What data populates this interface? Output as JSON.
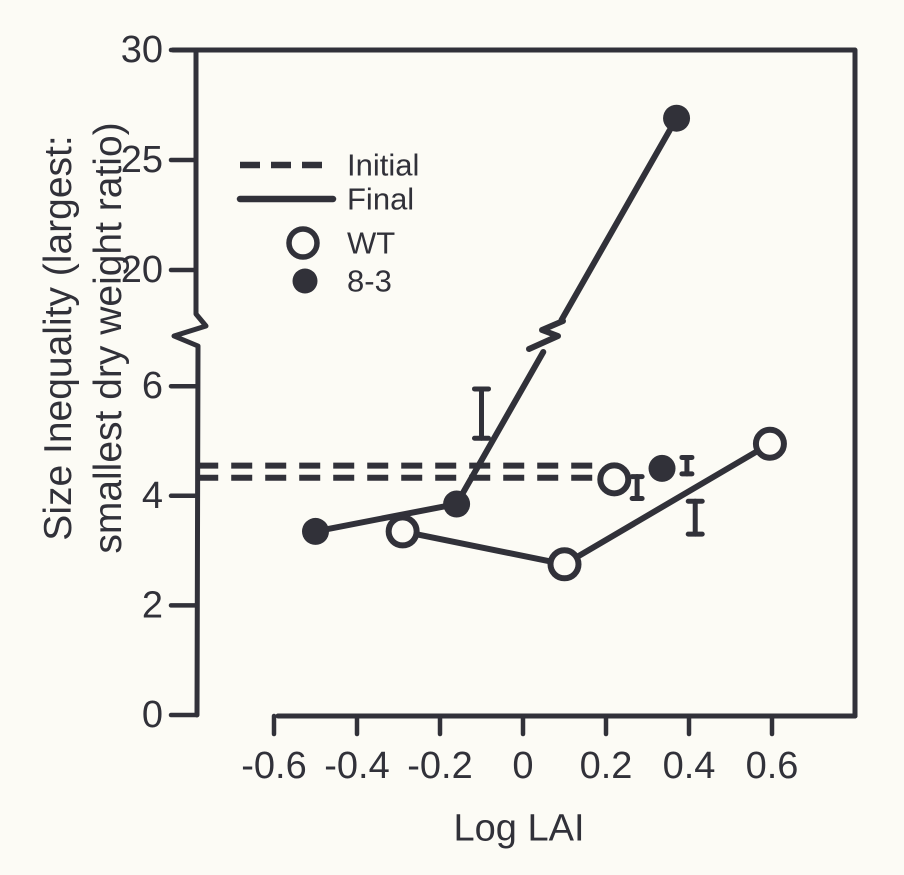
{
  "colors": {
    "ink": "#313139",
    "paper": "#fcfbf5"
  },
  "chart_data": {
    "type": "scatter",
    "title": "",
    "xlabel": "Log LAI",
    "ylabel_line1": "Size Inequality (largest:",
    "ylabel_line2": "smallest dry weight ratio)",
    "x_axis": {
      "tick_values": [
        -0.6,
        -0.4,
        -0.2,
        0,
        0.2,
        0.4,
        0.6
      ],
      "tick_labels": [
        "-0.6",
        "-0.4",
        "-0.2",
        "0",
        "0.2",
        "0.4",
        "0.6"
      ],
      "range": [
        -0.78,
        0.8
      ]
    },
    "y_axis": {
      "broken_axis": true,
      "lower_tick_values": [
        0,
        2,
        4,
        6
      ],
      "lower_tick_labels": [
        "0",
        "2",
        "4",
        "6"
      ],
      "upper_tick_values": [
        20,
        25,
        30
      ],
      "upper_tick_labels": [
        "20",
        "25",
        "30"
      ],
      "lower_range": [
        0,
        6.6
      ],
      "upper_range": [
        18,
        30
      ]
    },
    "legend": {
      "position": "upper-left-inside",
      "items": [
        {
          "sample": "dashed-line",
          "label": "Initial"
        },
        {
          "sample": "solid-line",
          "label": "Final"
        },
        {
          "sample": "open-circle",
          "label": "WT"
        },
        {
          "sample": "filled-circle",
          "label": "8-3"
        }
      ]
    },
    "initial_lines": [
      {
        "style": "dashed",
        "value": 4.55,
        "x_from": -0.785,
        "x_to": 0.197
      },
      {
        "style": "dashed",
        "value": 4.33,
        "x_from": -0.785,
        "x_to": 0.188
      }
    ],
    "series": [
      {
        "name": "WT final",
        "marker": "open-circle",
        "line": "solid",
        "points": [
          [
            -0.29,
            3.35
          ],
          [
            0.1,
            2.75
          ],
          [
            0.595,
            4.95
          ]
        ]
      },
      {
        "name": "WT final (unconnected point)",
        "marker": "open-circle",
        "line": "none",
        "points": [
          [
            0.22,
            4.3
          ]
        ]
      },
      {
        "name": "8-3 final",
        "marker": "filled-circle",
        "line": "solid-with-break",
        "points": [
          [
            -0.5,
            3.35
          ],
          [
            -0.16,
            3.85
          ],
          [
            0.37,
            26.9
          ]
        ]
      },
      {
        "name": "8-3 final (unconnected point)",
        "marker": "filled-circle",
        "line": "none",
        "points": [
          [
            0.335,
            4.5
          ]
        ]
      }
    ],
    "error_bars": [
      {
        "x": -0.1,
        "low": 5.05,
        "high": 5.95,
        "cap": 14
      },
      {
        "x": 0.275,
        "low": 3.95,
        "high": 4.35,
        "cap": 10
      },
      {
        "x": 0.395,
        "low": 4.4,
        "high": 4.7,
        "cap": 10
      },
      {
        "x": 0.415,
        "low": 3.3,
        "high": 3.9,
        "cap": 14
      }
    ]
  }
}
